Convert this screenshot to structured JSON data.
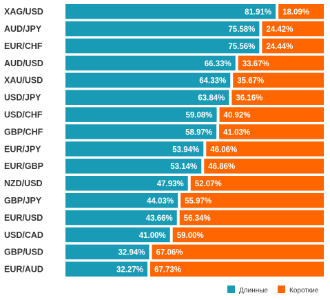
{
  "chart_data": {
    "type": "bar",
    "orientation": "horizontal",
    "stacked": true,
    "xlim": [
      0,
      100
    ],
    "grid": false,
    "legend_position": "bottom-right",
    "categories": [
      "XAG/USD",
      "AUD/JPY",
      "EUR/CHF",
      "AUD/USD",
      "XAU/USD",
      "USD/JPY",
      "USD/CHF",
      "GBP/CHF",
      "EUR/JPY",
      "EUR/GBP",
      "NZD/USD",
      "GBP/JPY",
      "EUR/USD",
      "USD/CAD",
      "GBP/USD",
      "EUR/AUD"
    ],
    "series": [
      {
        "name": "Длинные",
        "color": "#1a9bb5",
        "values": [
          81.91,
          75.58,
          75.56,
          66.33,
          64.33,
          63.84,
          59.08,
          58.97,
          53.94,
          53.14,
          47.93,
          44.03,
          43.66,
          41.0,
          32.94,
          32.27
        ],
        "labels": [
          "81.91%",
          "75.58%",
          "75.56%",
          "66.33%",
          "64.33%",
          "63.84%",
          "59.08%",
          "58.97%",
          "53.94%",
          "53.14%",
          "47.93%",
          "44.03%",
          "43.66%",
          "41.00%",
          "32.94%",
          "32.27%"
        ]
      },
      {
        "name": "Короткие",
        "color": "#ff6600",
        "values": [
          18.09,
          24.42,
          24.44,
          33.67,
          35.67,
          36.16,
          40.92,
          41.03,
          46.06,
          46.86,
          52.07,
          55.97,
          56.34,
          59.0,
          67.06,
          67.73
        ],
        "labels": [
          "18.09%",
          "24.42%",
          "24.44%",
          "33.67%",
          "35.67%",
          "36.16%",
          "40.92%",
          "41.03%",
          "46.06%",
          "46.86%",
          "52.07%",
          "55.97%",
          "56.34%",
          "59.00%",
          "67.06%",
          "67.73%"
        ]
      }
    ]
  }
}
